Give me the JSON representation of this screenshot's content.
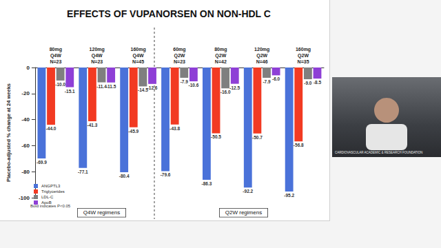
{
  "chart_data": {
    "type": "bar",
    "title": "EFFECTS OF VUPANORSEN ON NON-HDL C",
    "y_label": "Placebo-adjusted % change at 24 weeks",
    "categories": [
      "80mg\nQ4W\nN=23",
      "120mg\nQ4W\nN=23",
      "160mg\nQ4W\nN=45",
      "60mg\nQ2W\nN=23",
      "80mg\nQ2W\nN=42",
      "120mg\nQ2W\nN=46",
      "160mg\nQ2W\nN=35"
    ],
    "series": [
      {
        "name": "ANGPTL3",
        "color": "#4a72d9",
        "values": [
          -69.9,
          -77.1,
          -80.4,
          -79.6,
          -86.3,
          -92.2,
          -95.2
        ],
        "value_labels": [
          "-69.9",
          "-77.1",
          "-80.4",
          "-79.6",
          "-86.3",
          "-92.2",
          "-95.2"
        ]
      },
      {
        "name": "Triglycerides",
        "color": "#f23a22",
        "values": [
          -44.0,
          -41.3,
          -45.9,
          -43.8,
          -50.5,
          -50.7,
          -56.8
        ],
        "value_labels": [
          "-44.0",
          "-41.3",
          "-45.9",
          "-43.8",
          "-50.5",
          "-50.7",
          "-56.8"
        ]
      },
      {
        "name": "LDL-C",
        "color": "#7f7f7f",
        "values": [
          -10.0,
          -11.4,
          -14.5,
          -7.9,
          -16.0,
          -7.9,
          -9.0
        ],
        "value_labels": [
          "-10.0",
          "-11.4",
          "-14.5",
          "-7.9",
          "-16.0",
          "-7.9",
          "-9.0"
        ]
      },
      {
        "name": "ApoB",
        "color": "#8e3fd6",
        "values": [
          -15.1,
          -11.5,
          -12.6,
          -10.6,
          -12.5,
          -6.0,
          -8.5
        ],
        "value_labels": [
          "-15.1",
          "-11.5",
          "-12.6",
          "-10.6",
          "-12.5",
          "-6.0",
          "-8.5"
        ]
      }
    ],
    "ylim": [
      -100,
      0
    ],
    "yticks": [
      -100,
      -80,
      -60,
      -40,
      -20,
      0
    ],
    "grid": false,
    "legend": "lower left",
    "data_labels": true,
    "annotations": [
      "Bold indicates P<0.05",
      "Q4W regimens",
      "Q2W regimens",
      "CARDIOVASCULAR ACADEMIC & RESEARCH FOUNDATION"
    ]
  }
}
